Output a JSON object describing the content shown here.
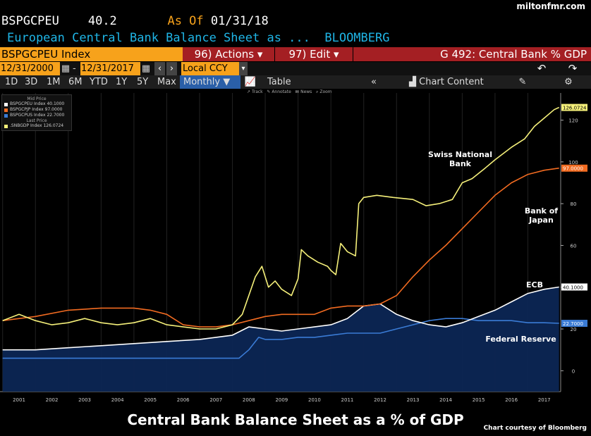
{
  "watermark": "miltonfmr.com",
  "header": {
    "ticker": "BSPGCPEU",
    "value": "40.2",
    "asof_label": "As Of",
    "asof_date": "01/31/18",
    "description": "European Central Bank Balance Sheet as ...",
    "source": "BLOOMBERG"
  },
  "toolbar": {
    "index_label": "BSPGCPEU Index",
    "actions": "96) Actions",
    "edit": "97) Edit",
    "chart_name": "G 492: Central Bank % GDP",
    "start_date": "12/31/2000",
    "end_date": "12/31/2017",
    "currency": "Local CCY",
    "ranges": [
      "1D",
      "3D",
      "1M",
      "6M",
      "YTD",
      "1Y",
      "5Y",
      "Max"
    ],
    "frequency": "Monthly",
    "table": "Table",
    "chart_content": "Chart Content",
    "subtools": [
      "Track",
      "Annotate",
      "News",
      "Zoom"
    ]
  },
  "legend": {
    "mid_price_header": "Mid Price",
    "last_price_header": "Last Price",
    "entries": [
      {
        "label": "BSPGCPEU Index",
        "value": "40.1000",
        "color": "#ffffff"
      },
      {
        "label": "BSPGCPJP Index",
        "value": "97.0000",
        "color": "#f26b21"
      },
      {
        "label": "BSPGCPUS Index",
        "value": "22.7000",
        "color": "#3a7bd5"
      },
      {
        "label": ".SNBGDP Index",
        "value": "126.0724",
        "color": "#f5f07a"
      }
    ]
  },
  "annotations": {
    "snb": "Swiss National Bank",
    "boj": "Bank of Japan",
    "ecb": "ECB",
    "fed": "Federal Reserve"
  },
  "bottom_title": "Central Bank Balance Sheet as a % of GDP",
  "courtesy": "Chart courtesy of Bloomberg",
  "chart_data": {
    "type": "line",
    "title": "Central Bank Balance Sheet as a % of GDP",
    "x_ticks": [
      "2001",
      "2002",
      "2003",
      "2004",
      "2005",
      "2006",
      "2007",
      "2008",
      "2009",
      "2010",
      "2011",
      "2012",
      "2013",
      "2014",
      "2015",
      "2016",
      "2017"
    ],
    "xlim": [
      2000.92,
      2018.0
    ],
    "y_ticks": [
      0,
      20,
      40,
      60,
      80,
      100,
      120
    ],
    "ylim": [
      -10,
      133
    ],
    "last_value_labels": [
      "126.0724",
      "97.0000",
      "40.1000",
      "22.7000"
    ],
    "series": [
      {
        "name": ".SNBGDP Index",
        "color": "#f5f07a",
        "points": [
          [
            2001.0,
            24
          ],
          [
            2001.5,
            27
          ],
          [
            2002.0,
            24
          ],
          [
            2002.5,
            22
          ],
          [
            2003.0,
            23
          ],
          [
            2003.5,
            25
          ],
          [
            2004.0,
            23
          ],
          [
            2004.5,
            22
          ],
          [
            2005.0,
            23
          ],
          [
            2005.5,
            25
          ],
          [
            2006.0,
            22
          ],
          [
            2006.5,
            21
          ],
          [
            2007.0,
            20
          ],
          [
            2007.5,
            20
          ],
          [
            2008.0,
            22
          ],
          [
            2008.3,
            27
          ],
          [
            2008.7,
            45
          ],
          [
            2008.9,
            50
          ],
          [
            2009.1,
            40
          ],
          [
            2009.3,
            43
          ],
          [
            2009.5,
            39
          ],
          [
            2009.8,
            36
          ],
          [
            2010.0,
            44
          ],
          [
            2010.1,
            58
          ],
          [
            2010.3,
            55
          ],
          [
            2010.6,
            52
          ],
          [
            2010.9,
            50
          ],
          [
            2011.0,
            48
          ],
          [
            2011.15,
            46
          ],
          [
            2011.3,
            61
          ],
          [
            2011.5,
            57
          ],
          [
            2011.75,
            55
          ],
          [
            2011.85,
            80
          ],
          [
            2012.0,
            83
          ],
          [
            2012.4,
            84
          ],
          [
            2012.9,
            83
          ],
          [
            2013.5,
            82
          ],
          [
            2013.9,
            79
          ],
          [
            2014.3,
            80
          ],
          [
            2014.7,
            82
          ],
          [
            2015.0,
            90
          ],
          [
            2015.3,
            92
          ],
          [
            2015.7,
            97
          ],
          [
            2016.0,
            101
          ],
          [
            2016.5,
            107
          ],
          [
            2016.9,
            111
          ],
          [
            2017.2,
            117
          ],
          [
            2017.5,
            121
          ],
          [
            2017.8,
            125
          ],
          [
            2017.95,
            126.07
          ]
        ]
      },
      {
        "name": "BSPGCPJP Index",
        "color": "#f26b21",
        "points": [
          [
            2001.0,
            24
          ],
          [
            2002.0,
            26
          ],
          [
            2003.0,
            29
          ],
          [
            2004.0,
            30
          ],
          [
            2005.0,
            30
          ],
          [
            2005.5,
            29
          ],
          [
            2006.0,
            27
          ],
          [
            2006.5,
            22
          ],
          [
            2007.0,
            21
          ],
          [
            2007.5,
            21
          ],
          [
            2008.0,
            22
          ],
          [
            2008.5,
            24
          ],
          [
            2009.0,
            26
          ],
          [
            2009.5,
            27
          ],
          [
            2010.0,
            27
          ],
          [
            2010.5,
            27
          ],
          [
            2011.0,
            30
          ],
          [
            2011.5,
            31
          ],
          [
            2012.0,
            31
          ],
          [
            2012.5,
            32
          ],
          [
            2013.0,
            36
          ],
          [
            2013.5,
            45
          ],
          [
            2014.0,
            53
          ],
          [
            2014.5,
            60
          ],
          [
            2015.0,
            68
          ],
          [
            2015.5,
            76
          ],
          [
            2016.0,
            84
          ],
          [
            2016.5,
            90
          ],
          [
            2017.0,
            94
          ],
          [
            2017.5,
            96
          ],
          [
            2017.95,
            97.0
          ]
        ]
      },
      {
        "name": "BSPGCPEU Index",
        "color": "#ffffff",
        "points": [
          [
            2001.0,
            10
          ],
          [
            2002.0,
            10
          ],
          [
            2003.0,
            11
          ],
          [
            2004.0,
            12
          ],
          [
            2005.0,
            13
          ],
          [
            2006.0,
            14
          ],
          [
            2007.0,
            15
          ],
          [
            2008.0,
            17
          ],
          [
            2008.5,
            21
          ],
          [
            2009.0,
            20
          ],
          [
            2009.5,
            19
          ],
          [
            2010.0,
            20
          ],
          [
            2010.5,
            21
          ],
          [
            2011.0,
            22
          ],
          [
            2011.5,
            25
          ],
          [
            2012.0,
            31
          ],
          [
            2012.5,
            32
          ],
          [
            2013.0,
            27
          ],
          [
            2013.5,
            24
          ],
          [
            2014.0,
            22
          ],
          [
            2014.5,
            21
          ],
          [
            2015.0,
            23
          ],
          [
            2015.5,
            26
          ],
          [
            2016.0,
            29
          ],
          [
            2016.5,
            33
          ],
          [
            2017.0,
            37
          ],
          [
            2017.5,
            39
          ],
          [
            2017.95,
            40.1
          ]
        ]
      },
      {
        "name": "BSPGCPUS Index",
        "color": "#3a7bd5",
        "points": [
          [
            2001.0,
            6
          ],
          [
            2002.0,
            6
          ],
          [
            2003.0,
            6
          ],
          [
            2004.0,
            6
          ],
          [
            2005.0,
            6
          ],
          [
            2006.0,
            6
          ],
          [
            2007.0,
            6
          ],
          [
            2008.0,
            6
          ],
          [
            2008.2,
            6
          ],
          [
            2008.5,
            10
          ],
          [
            2008.8,
            16
          ],
          [
            2009.0,
            15
          ],
          [
            2009.5,
            15
          ],
          [
            2010.0,
            16
          ],
          [
            2010.5,
            16
          ],
          [
            2011.0,
            17
          ],
          [
            2011.5,
            18
          ],
          [
            2012.0,
            18
          ],
          [
            2012.5,
            18
          ],
          [
            2013.0,
            20
          ],
          [
            2013.5,
            22
          ],
          [
            2014.0,
            24
          ],
          [
            2014.5,
            25
          ],
          [
            2015.0,
            25
          ],
          [
            2015.5,
            24
          ],
          [
            2016.0,
            24
          ],
          [
            2016.5,
            24
          ],
          [
            2017.0,
            23
          ],
          [
            2017.5,
            23
          ],
          [
            2017.95,
            22.7
          ]
        ]
      }
    ]
  }
}
